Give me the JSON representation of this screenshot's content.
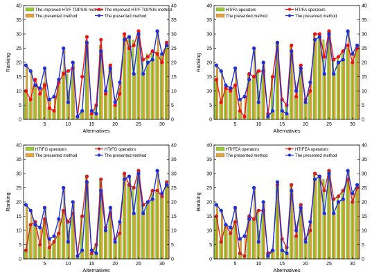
{
  "chart_data": [
    {
      "type": "bar+line",
      "xlabel": "Alternatives",
      "ylabel": "Ranking",
      "xticks": [
        5,
        10,
        15,
        20,
        25,
        30
      ],
      "yticks": [
        0,
        5,
        10,
        15,
        20,
        25,
        30,
        35,
        40
      ],
      "ylim": [
        0,
        40
      ],
      "legend_position": "top-left",
      "x": [
        1,
        2,
        3,
        4,
        5,
        6,
        7,
        8,
        9,
        10,
        11,
        12,
        13,
        14,
        15,
        16,
        17,
        18,
        19,
        20,
        21,
        22,
        23,
        24,
        25,
        26,
        27,
        28,
        29,
        30,
        31
      ],
      "series": [
        {
          "name": "The improved HTrF TOPSIS method",
          "kind": "bar",
          "color": "#99cc33",
          "values": [
            10,
            7,
            12,
            9,
            13,
            4,
            3,
            13,
            17,
            16,
            17,
            1,
            3,
            28,
            2,
            5,
            26,
            9,
            19,
            5,
            11,
            30,
            29,
            28,
            30,
            22,
            23,
            24,
            24,
            23,
            27
          ]
        },
        {
          "name": "The presented method",
          "kind": "bar",
          "color": "#e8a23a",
          "values": [
            19,
            17,
            12,
            11,
            18,
            7,
            8,
            14,
            25,
            10,
            20,
            1,
            3,
            27,
            3,
            2,
            24,
            10,
            18,
            6,
            13,
            28,
            29,
            16,
            31,
            16,
            20,
            21,
            31,
            23,
            26
          ]
        },
        {
          "name": "The improved HTrF TOPSIS method",
          "kind": "line",
          "color": "#ee1111",
          "values": [
            10,
            7,
            14,
            9,
            12,
            4,
            3,
            13,
            16,
            17,
            18,
            1,
            15,
            29,
            2,
            5,
            28,
            9,
            19,
            5,
            9,
            30,
            25,
            26,
            31,
            21,
            22,
            24,
            23,
            20,
            27
          ]
        },
        {
          "name": "The presented method",
          "kind": "line",
          "color": "#1f2fd6",
          "values": [
            19,
            17,
            12,
            11,
            18,
            7,
            8,
            14,
            25,
            6,
            20,
            1,
            3,
            27,
            3,
            2,
            24,
            10,
            18,
            6,
            13,
            28,
            29,
            16,
            30,
            16,
            20,
            21,
            31,
            23,
            26
          ]
        }
      ]
    },
    {
      "type": "bar+line",
      "xlabel": "Alternatives",
      "ylabel": "Ranking",
      "xticks": [
        5,
        10,
        15,
        20,
        25,
        30
      ],
      "yticks": [
        0,
        5,
        10,
        15,
        20,
        25,
        30,
        35,
        40
      ],
      "ylim": [
        0,
        40
      ],
      "legend_position": "top-left",
      "x": [
        1,
        2,
        3,
        4,
        5,
        6,
        7,
        8,
        9,
        10,
        11,
        12,
        13,
        14,
        15,
        16,
        17,
        18,
        19,
        20,
        21,
        22,
        23,
        24,
        25,
        26,
        27,
        28,
        29,
        30,
        31
      ],
      "series": [
        {
          "name": "HTrFA operators",
          "kind": "bar",
          "color": "#99cc33",
          "values": [
            14,
            6,
            11,
            10,
            12,
            3,
            1,
            16,
            15,
            17,
            17,
            2,
            15,
            27,
            7,
            5,
            26,
            8,
            19,
            7,
            10,
            30,
            30,
            28,
            31,
            21,
            22,
            24,
            25,
            20,
            25
          ]
        },
        {
          "name": "The presented method",
          "kind": "bar",
          "color": "#e8a23a",
          "values": [
            19,
            17,
            12,
            11,
            18,
            7,
            8,
            14,
            25,
            10,
            20,
            1,
            3,
            27,
            3,
            2,
            24,
            10,
            18,
            6,
            13,
            28,
            29,
            16,
            31,
            16,
            20,
            21,
            31,
            23,
            26
          ]
        },
        {
          "name": "HTrFA operators",
          "kind": "line",
          "color": "#ee1111",
          "values": [
            14,
            6,
            11,
            10,
            12,
            3,
            1,
            16,
            15,
            17,
            17,
            2,
            15,
            27,
            7,
            5,
            26,
            8,
            19,
            7,
            10,
            30,
            30,
            22,
            31,
            21,
            22,
            24,
            26,
            20,
            25
          ]
        },
        {
          "name": "The presented method",
          "kind": "line",
          "color": "#1f2fd6",
          "values": [
            19,
            17,
            12,
            11,
            18,
            7,
            8,
            14,
            25,
            6,
            20,
            1,
            3,
            27,
            3,
            2,
            24,
            10,
            18,
            6,
            13,
            28,
            29,
            16,
            30,
            16,
            20,
            21,
            31,
            23,
            26
          ]
        }
      ]
    },
    {
      "type": "bar+line",
      "xlabel": "Alternatives",
      "ylabel": "Ranking",
      "xticks": [
        5,
        10,
        15,
        20,
        25,
        30
      ],
      "yticks": [
        0,
        5,
        10,
        15,
        20,
        25,
        30,
        35,
        40
      ],
      "ylim": [
        0,
        40
      ],
      "legend_position": "top-left",
      "x": [
        1,
        2,
        3,
        4,
        5,
        6,
        7,
        8,
        9,
        10,
        11,
        12,
        13,
        14,
        15,
        16,
        17,
        18,
        19,
        20,
        21,
        22,
        23,
        24,
        25,
        26,
        27,
        28,
        29,
        30,
        31
      ],
      "series": [
        {
          "name": "HTrFG operators",
          "kind": "bar",
          "color": "#99cc33",
          "values": [
            3,
            12,
            13,
            5,
            14,
            4,
            6,
            9,
            17,
            13,
            16,
            1,
            15,
            29,
            2,
            5,
            28,
            11,
            16,
            7,
            9,
            30,
            26,
            25,
            30,
            19,
            20,
            24,
            24,
            22,
            27
          ]
        },
        {
          "name": "The presented method",
          "kind": "bar",
          "color": "#e8a23a",
          "values": [
            19,
            17,
            12,
            11,
            18,
            7,
            8,
            14,
            25,
            10,
            20,
            1,
            3,
            27,
            3,
            2,
            24,
            10,
            18,
            6,
            13,
            28,
            29,
            16,
            31,
            16,
            20,
            21,
            31,
            23,
            26
          ]
        },
        {
          "name": "HTrFG operators",
          "kind": "line",
          "color": "#cc2222",
          "values": [
            3,
            12,
            13,
            5,
            14,
            4,
            6,
            9,
            17,
            13,
            16,
            1,
            15,
            29,
            2,
            5,
            28,
            11,
            16,
            7,
            9,
            30,
            26,
            25,
            31,
            19,
            20,
            24,
            24,
            22,
            27
          ]
        },
        {
          "name": "The presented method",
          "kind": "line",
          "color": "#1f2fd6",
          "values": [
            19,
            17,
            12,
            11,
            18,
            7,
            8,
            14,
            25,
            6,
            20,
            1,
            3,
            27,
            3,
            2,
            24,
            10,
            18,
            6,
            13,
            28,
            29,
            16,
            30,
            16,
            20,
            21,
            31,
            23,
            26
          ]
        }
      ]
    },
    {
      "type": "bar+line",
      "xlabel": "Alternatives",
      "ylabel": "Ranking",
      "xticks": [
        5,
        10,
        15,
        20,
        25,
        30
      ],
      "yticks": [
        0,
        5,
        10,
        15,
        20,
        25,
        30,
        35,
        40
      ],
      "ylim": [
        0,
        40
      ],
      "legend_position": "top-left",
      "x": [
        1,
        2,
        3,
        4,
        5,
        6,
        7,
        8,
        9,
        10,
        11,
        12,
        13,
        14,
        15,
        16,
        17,
        18,
        19,
        20,
        21,
        22,
        23,
        24,
        25,
        26,
        27,
        28,
        29,
        30,
        31
      ],
      "series": [
        {
          "name": "HTrFEA operators",
          "kind": "bar",
          "color": "#99cc33",
          "values": [
            15,
            6,
            12,
            9,
            13,
            2,
            1,
            15,
            14,
            17,
            17,
            2,
            3,
            26,
            7,
            4,
            26,
            8,
            19,
            7,
            10,
            30,
            29,
            28,
            31,
            21,
            22,
            24,
            28,
            20,
            25
          ]
        },
        {
          "name": "The presented method",
          "kind": "bar",
          "color": "#e8a23a",
          "values": [
            19,
            17,
            12,
            11,
            18,
            7,
            8,
            14,
            25,
            10,
            20,
            1,
            3,
            27,
            3,
            2,
            24,
            10,
            18,
            6,
            13,
            28,
            29,
            16,
            31,
            16,
            20,
            21,
            31,
            23,
            26
          ]
        },
        {
          "name": "HTrFEA operators",
          "kind": "line",
          "color": "#cc2222",
          "values": [
            15,
            6,
            12,
            9,
            13,
            2,
            1,
            15,
            14,
            17,
            17,
            2,
            3,
            26,
            7,
            4,
            26,
            8,
            19,
            7,
            10,
            30,
            29,
            24,
            31,
            21,
            22,
            24,
            28,
            20,
            25
          ]
        },
        {
          "name": "The presented method",
          "kind": "line",
          "color": "#1f2fd6",
          "values": [
            19,
            17,
            12,
            11,
            18,
            7,
            8,
            14,
            25,
            6,
            20,
            1,
            3,
            27,
            3,
            2,
            24,
            10,
            18,
            6,
            13,
            28,
            29,
            16,
            30,
            16,
            20,
            21,
            31,
            23,
            26
          ]
        }
      ]
    }
  ]
}
